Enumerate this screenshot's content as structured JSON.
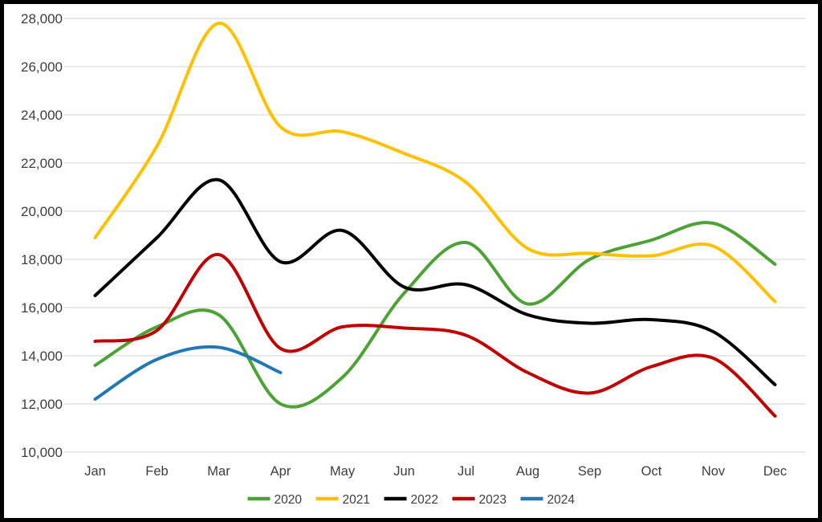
{
  "chart_data": {
    "type": "line",
    "line_style": "smooth",
    "title": "",
    "xlabel": "",
    "ylabel": "",
    "x": [
      "Jan",
      "Feb",
      "Mar",
      "Apr",
      "May",
      "Jun",
      "Jul",
      "Aug",
      "Sep",
      "Oct",
      "Nov",
      "Dec"
    ],
    "series": [
      {
        "name": "2020",
        "color": "#4CA235",
        "values": [
          13600,
          15200,
          15700,
          12000,
          13100,
          16600,
          18700,
          16150,
          18000,
          18800,
          19500,
          17800
        ]
      },
      {
        "name": "2021",
        "color": "#FFC000",
        "values": [
          18900,
          22700,
          27800,
          23500,
          23300,
          22400,
          21200,
          18450,
          18250,
          18150,
          18550,
          16250
        ]
      },
      {
        "name": "2022",
        "color": "#000000",
        "values": [
          16500,
          18900,
          21300,
          17900,
          19200,
          16850,
          16950,
          15700,
          15350,
          15500,
          15000,
          12800
        ]
      },
      {
        "name": "2023",
        "color": "#C00000",
        "values": [
          14600,
          15050,
          18200,
          14300,
          15200,
          15150,
          14850,
          13300,
          12450,
          13550,
          13900,
          11500
        ]
      },
      {
        "name": "2024",
        "color": "#2278B5",
        "values": [
          12200,
          13850,
          14350,
          13300,
          null,
          null,
          null,
          null,
          null,
          null,
          null,
          null
        ]
      }
    ],
    "ylim": [
      10000,
      28000
    ],
    "y_tick_step": 2000,
    "y_ticks": [
      {
        "value": 10000,
        "label": "10,000"
      },
      {
        "value": 12000,
        "label": "12,000"
      },
      {
        "value": 14000,
        "label": "14,000"
      },
      {
        "value": 16000,
        "label": "16,000"
      },
      {
        "value": 18000,
        "label": "18,000"
      },
      {
        "value": 20000,
        "label": "20,000"
      },
      {
        "value": 22000,
        "label": "22,000"
      },
      {
        "value": 24000,
        "label": "24,000"
      },
      {
        "value": 26000,
        "label": "26,000"
      },
      {
        "value": 28000,
        "label": "28,000"
      }
    ],
    "grid": true,
    "legend_position": "bottom",
    "legend_items": [
      "2020",
      "2021",
      "2022",
      "2023",
      "2024"
    ]
  },
  "style": {
    "background_color": "#FFFFFF",
    "frame_border_color": "#000000",
    "gridline_color": "#D9D9D9",
    "axis_label_color": "#3D3D3D",
    "legend_text_color": "#3D3D3D"
  }
}
